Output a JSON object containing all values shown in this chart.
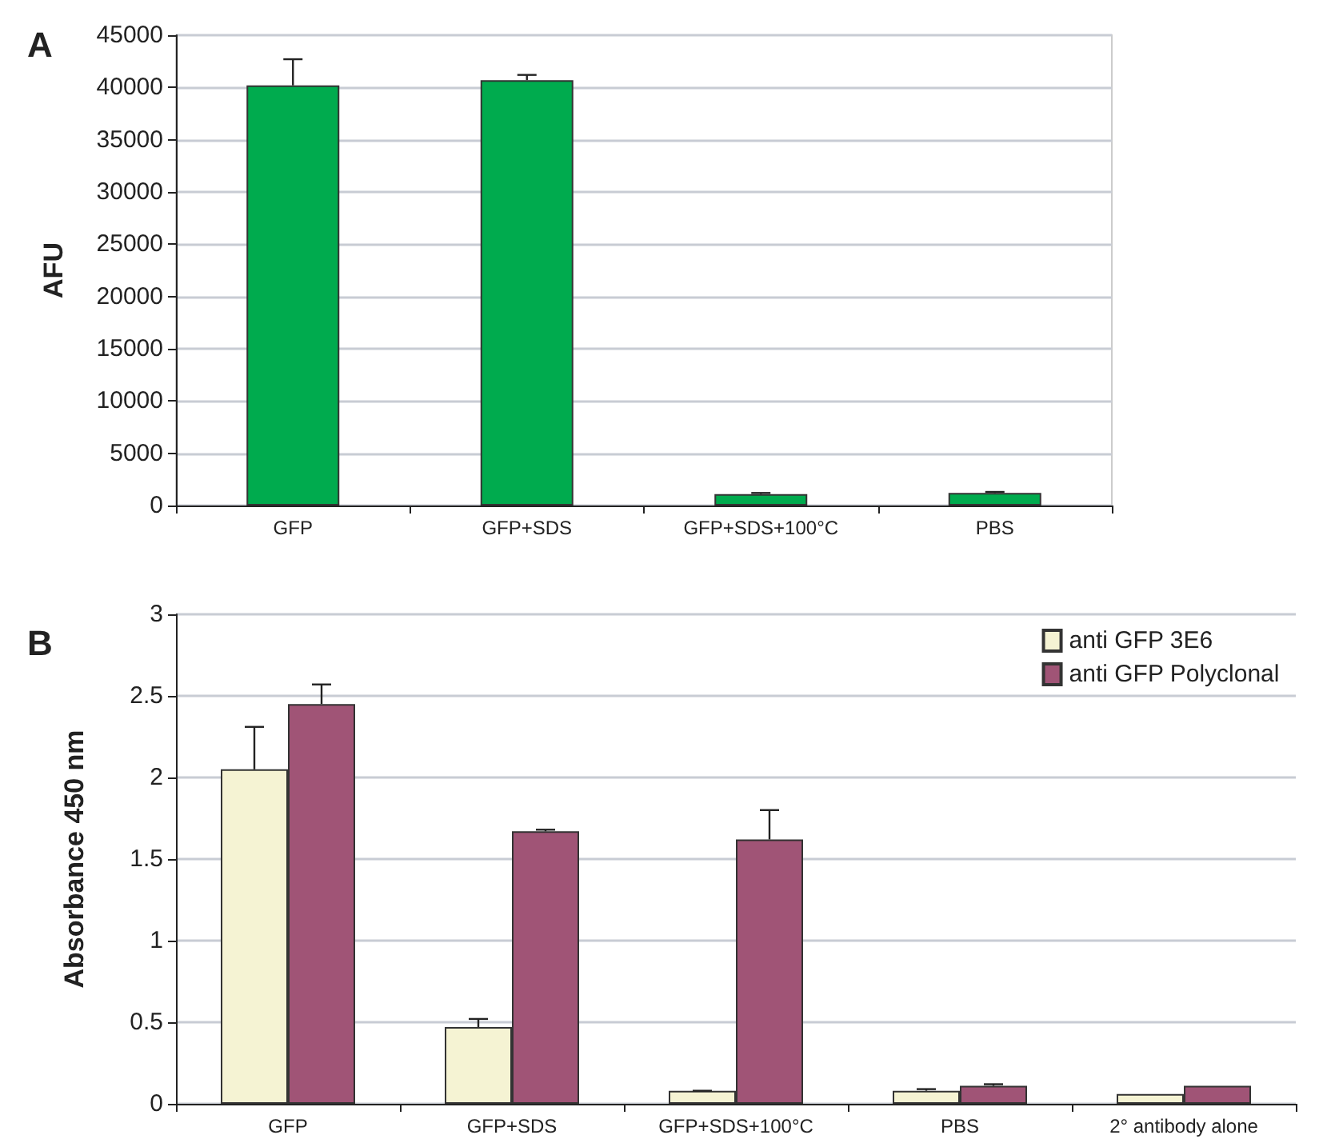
{
  "chart_data": [
    {
      "type": "bar",
      "title": "A",
      "ylabel": "AFU",
      "categories": [
        "GFP",
        "GFP+SDS",
        "GFP+SDS+100°C",
        "PBS"
      ],
      "series": [
        {
          "color": "#00ab4e",
          "values": [
            40200,
            40700,
            1100,
            1200
          ],
          "errors": [
            [
              40200,
              42700
            ],
            [
              40700,
              41200
            ],
            [
              1100,
              1200
            ],
            [
              1200,
              1300
            ]
          ]
        }
      ],
      "ylim": [
        0,
        45000
      ],
      "yticks": [
        0,
        5000,
        10000,
        15000,
        20000,
        25000,
        30000,
        35000,
        40000,
        45000
      ],
      "grid": "y",
      "legend": false
    },
    {
      "type": "bar",
      "title": "B",
      "ylabel": "Absorbance 450 nm",
      "categories": [
        "GFP",
        "GFP+SDS",
        "GFP+SDS+100°C",
        "PBS",
        "2° antibody alone"
      ],
      "series": [
        {
          "name": "anti GFP 3E6",
          "color": "#f5f3d3",
          "values": [
            2.05,
            0.47,
            0.08,
            0.08,
            0.06
          ],
          "errors": [
            [
              2.05,
              2.31
            ],
            [
              0.47,
              0.52
            ],
            [
              0.08,
              0.08
            ],
            [
              0.08,
              0.09
            ],
            null
          ]
        },
        {
          "name": "anti GFP Polyclonal",
          "color": "#a05476",
          "values": [
            2.45,
            1.67,
            1.62,
            0.11,
            0.11
          ],
          "errors": [
            [
              2.45,
              2.57
            ],
            [
              1.67,
              1.68
            ],
            [
              1.62,
              1.8
            ],
            [
              0.11,
              0.12
            ],
            null
          ]
        }
      ],
      "ylim": [
        0,
        3
      ],
      "yticks": [
        0,
        0.5,
        1,
        1.5,
        2,
        2.5,
        3
      ],
      "grid": "y",
      "legend": "top right"
    }
  ]
}
